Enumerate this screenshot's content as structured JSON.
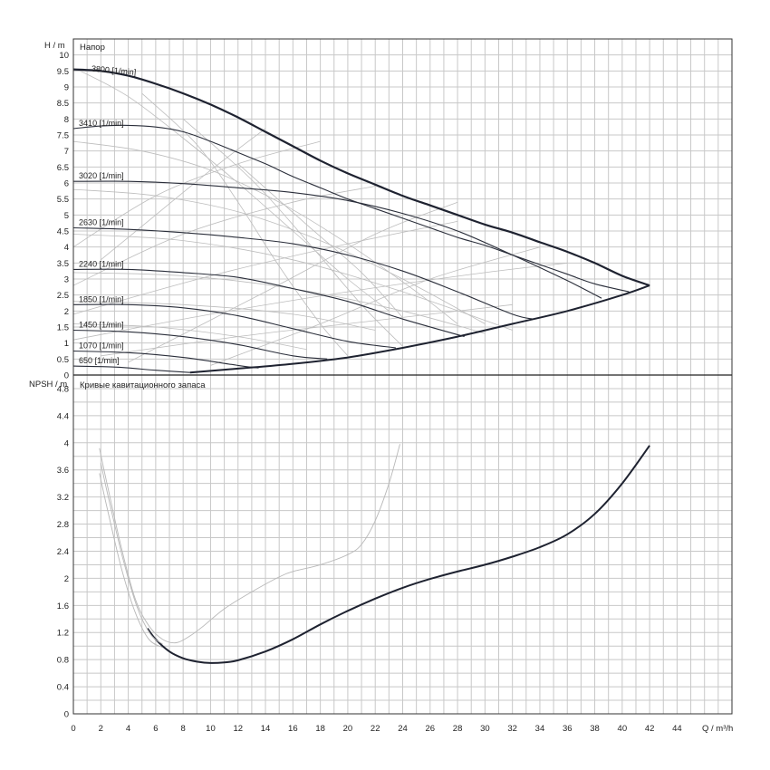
{
  "chart_data": [
    {
      "type": "line",
      "title": "Напор",
      "ylabel": "H / m",
      "xlabel": "Q / m³/h",
      "xlim": [
        0,
        48
      ],
      "ylim": [
        0,
        10.5
      ],
      "x_ticks": [
        "0",
        "2",
        "4",
        "6",
        "8",
        "10",
        "12",
        "14",
        "16",
        "18",
        "20",
        "22",
        "24",
        "26",
        "28",
        "30",
        "32",
        "34",
        "36",
        "38",
        "40",
        "42",
        "44"
      ],
      "y_ticks": [
        "0",
        "0.5",
        "1",
        "1.5",
        "2",
        "2.5",
        "3",
        "3.5",
        "4",
        "4.5",
        "5",
        "5.5",
        "6",
        "6.5",
        "7",
        "7.5",
        "8",
        "8.5",
        "9",
        "9.5",
        "10"
      ],
      "grid": true,
      "series": [
        {
          "name": "3800 [1/min]",
          "x": [
            0,
            2,
            4,
            6,
            8,
            10,
            12,
            14,
            16,
            18,
            20,
            22,
            24,
            26,
            28,
            30,
            32,
            34,
            36,
            38,
            40,
            42
          ],
          "y": [
            9.55,
            9.5,
            9.35,
            9.1,
            8.8,
            8.45,
            8.05,
            7.6,
            7.15,
            6.7,
            6.3,
            5.95,
            5.6,
            5.3,
            5.0,
            4.7,
            4.45,
            4.15,
            3.85,
            3.5,
            3.1,
            2.8
          ]
        },
        {
          "name": "3410 [1/min]",
          "x": [
            0,
            2,
            4,
            6,
            8,
            10,
            12,
            14,
            16,
            18,
            20,
            22,
            24,
            26,
            28,
            30,
            32,
            34,
            36,
            38,
            40.5
          ],
          "y": [
            7.7,
            7.78,
            7.8,
            7.75,
            7.6,
            7.3,
            6.95,
            6.6,
            6.2,
            5.85,
            5.5,
            5.2,
            4.9,
            4.6,
            4.3,
            4.05,
            3.75,
            3.45,
            3.15,
            2.85,
            2.6
          ]
        },
        {
          "name": "3020 [1/min]",
          "x": [
            0,
            4,
            8,
            12,
            16,
            20,
            24,
            28,
            32,
            36,
            38.5
          ],
          "y": [
            6.05,
            6.05,
            5.98,
            5.85,
            5.7,
            5.45,
            5.05,
            4.5,
            3.75,
            2.95,
            2.4
          ]
        },
        {
          "name": "2630 [1/min]",
          "x": [
            0,
            4,
            8,
            12,
            16,
            20,
            24,
            28,
            32,
            33.5
          ],
          "y": [
            4.6,
            4.55,
            4.45,
            4.3,
            4.1,
            3.75,
            3.25,
            2.6,
            1.9,
            1.75
          ]
        },
        {
          "name": "2240 [1/min]",
          "x": [
            0,
            4,
            8,
            12,
            16,
            20,
            24,
            28.5
          ],
          "y": [
            3.3,
            3.3,
            3.2,
            3.05,
            2.7,
            2.3,
            1.75,
            1.2
          ]
        },
        {
          "name": "1850 [1/min]",
          "x": [
            0,
            4,
            8,
            12,
            16,
            20,
            23.5
          ],
          "y": [
            2.2,
            2.2,
            2.1,
            1.85,
            1.45,
            1.05,
            0.85
          ]
        },
        {
          "name": "1450 [1/min]",
          "x": [
            0,
            4,
            8,
            12,
            16,
            18.5
          ],
          "y": [
            1.4,
            1.35,
            1.2,
            0.95,
            0.6,
            0.5
          ]
        },
        {
          "name": "1070 [1/min]",
          "x": [
            0,
            4,
            8,
            12,
            13.5
          ],
          "y": [
            0.75,
            0.7,
            0.55,
            0.3,
            0.22
          ]
        },
        {
          "name": "650 [1/min]",
          "x": [
            0,
            3,
            6,
            8.5
          ],
          "y": [
            0.28,
            0.25,
            0.15,
            0.08
          ]
        }
      ],
      "lower_envelope": {
        "x": [
          8.5,
          12,
          16,
          20,
          24,
          28,
          32,
          36,
          40,
          42
        ],
        "y": [
          0.08,
          0.2,
          0.35,
          0.55,
          0.85,
          1.2,
          1.6,
          2.0,
          2.5,
          2.8
        ]
      }
    },
    {
      "type": "line",
      "title": "Кривые кавитационного запаса",
      "ylabel": "NPSH / m",
      "xlabel": "Q / m³/h",
      "xlim": [
        0,
        48
      ],
      "ylim": [
        0,
        5
      ],
      "x_ticks": [
        "0",
        "2",
        "4",
        "6",
        "8",
        "10",
        "12",
        "14",
        "16",
        "18",
        "20",
        "22",
        "24",
        "26",
        "28",
        "30",
        "32",
        "34",
        "36",
        "38",
        "40",
        "42",
        "44"
      ],
      "y_ticks": [
        "0",
        "0.4",
        "0.8",
        "1.2",
        "1.6",
        "2",
        "2.4",
        "2.8",
        "3.2",
        "3.6",
        "4",
        "4.4",
        "4.8"
      ],
      "grid": true,
      "series": [
        {
          "name": "",
          "x": [
            5.4,
            6,
            7,
            8,
            9,
            10,
            11,
            12,
            14,
            16,
            18,
            20,
            22,
            24,
            26,
            28,
            30,
            32,
            34,
            36,
            38,
            40,
            42
          ],
          "y": [
            1.26,
            1.1,
            0.92,
            0.82,
            0.77,
            0.75,
            0.76,
            0.79,
            0.92,
            1.1,
            1.32,
            1.52,
            1.7,
            1.86,
            1.99,
            2.1,
            2.2,
            2.32,
            2.46,
            2.65,
            2.95,
            3.4,
            3.96
          ]
        },
        {
          "name": "",
          "x": [
            1.9,
            2.5,
            3.5,
            4.5,
            5.5,
            6.5,
            7.5,
            8.5,
            9.5,
            11,
            13,
            15,
            16,
            18,
            20,
            21,
            22,
            23,
            23.8
          ],
          "y": [
            3.92,
            3.35,
            2.45,
            1.7,
            1.3,
            1.1,
            1.05,
            1.15,
            1.3,
            1.55,
            1.8,
            2.02,
            2.1,
            2.2,
            2.35,
            2.5,
            2.85,
            3.4,
            3.98
          ]
        },
        {
          "name": "",
          "x": [
            1.9,
            2.5,
            3.5,
            4.5,
            5.5,
            6.5
          ],
          "y": [
            3.55,
            3.0,
            2.15,
            1.5,
            1.1,
            0.98
          ]
        },
        {
          "name": "",
          "x": [
            2.0,
            2.6,
            3.6,
            4.6,
            5.6,
            6.5
          ],
          "y": [
            3.7,
            3.15,
            2.3,
            1.6,
            1.18,
            1.03
          ]
        }
      ]
    }
  ]
}
